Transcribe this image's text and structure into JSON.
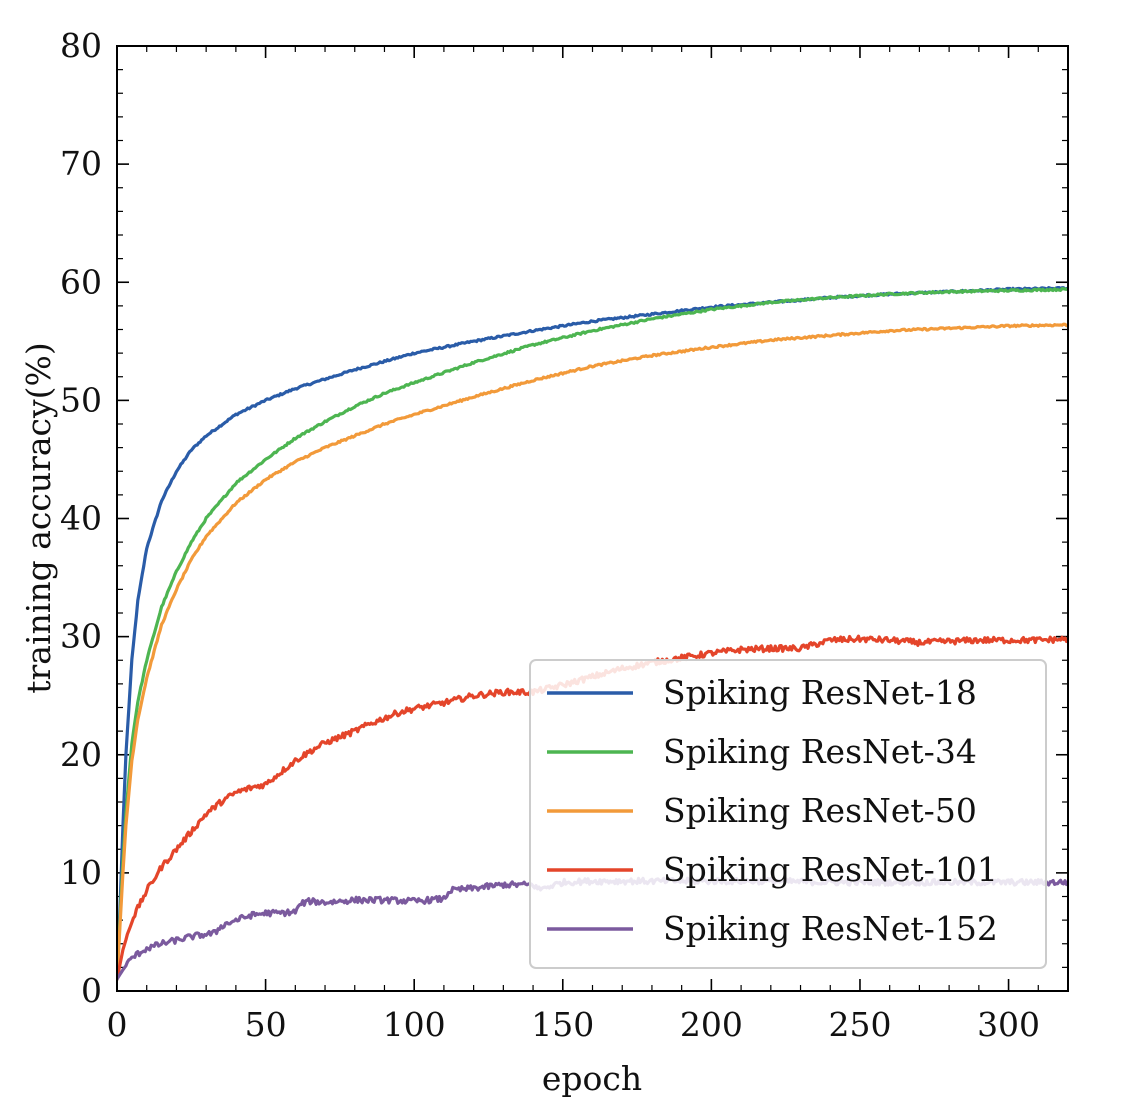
{
  "chart_data": {
    "type": "line",
    "title": "",
    "xlabel": "epoch",
    "ylabel": "training accuracy(%)",
    "xlim": [
      0,
      320
    ],
    "ylim": [
      0,
      80
    ],
    "xticks": [
      0,
      50,
      100,
      150,
      200,
      250,
      300
    ],
    "yticks": [
      0,
      10,
      20,
      30,
      40,
      50,
      60,
      70,
      80
    ],
    "grid": false,
    "legend": {
      "position": "lower-right"
    },
    "series": [
      {
        "name": "Spiking ResNet-18",
        "color": "#2a5ca8",
        "x": [
          0,
          1,
          2,
          3,
          5,
          7,
          10,
          15,
          20,
          25,
          30,
          40,
          50,
          60,
          70,
          80,
          90,
          100,
          120,
          140,
          160,
          180,
          200,
          220,
          240,
          260,
          280,
          300,
          320
        ],
        "y": [
          1.0,
          7.0,
          14.0,
          20.0,
          28.0,
          33.0,
          37.5,
          41.5,
          44.0,
          45.8,
          47.0,
          48.8,
          50.0,
          51.0,
          51.8,
          52.6,
          53.3,
          54.0,
          55.0,
          55.9,
          56.7,
          57.3,
          57.9,
          58.3,
          58.7,
          59.0,
          59.2,
          59.4,
          59.5
        ]
      },
      {
        "name": "Spiking ResNet-34",
        "color": "#4db551",
        "x": [
          0,
          1,
          2,
          3,
          5,
          7,
          10,
          15,
          20,
          25,
          30,
          40,
          50,
          60,
          70,
          80,
          90,
          100,
          120,
          140,
          160,
          180,
          200,
          220,
          240,
          260,
          280,
          300,
          320
        ],
        "y": [
          1.0,
          6.0,
          11.0,
          15.0,
          21.0,
          24.5,
          28.0,
          32.5,
          35.5,
          38.0,
          40.0,
          43.0,
          45.0,
          46.8,
          48.2,
          49.5,
          50.6,
          51.5,
          53.2,
          54.7,
          55.9,
          56.9,
          57.7,
          58.3,
          58.7,
          59.0,
          59.2,
          59.3,
          59.4
        ]
      },
      {
        "name": "Spiking ResNet-50",
        "color": "#f29a3a",
        "x": [
          0,
          1,
          2,
          3,
          5,
          7,
          10,
          15,
          20,
          25,
          30,
          40,
          50,
          60,
          70,
          80,
          90,
          100,
          120,
          140,
          160,
          180,
          200,
          220,
          240,
          260,
          280,
          300,
          320
        ],
        "y": [
          1.0,
          5.5,
          10.0,
          14.0,
          19.5,
          23.0,
          26.5,
          31.0,
          34.0,
          36.5,
          38.5,
          41.3,
          43.3,
          44.8,
          46.0,
          47.0,
          48.0,
          48.8,
          50.3,
          51.7,
          52.9,
          53.8,
          54.5,
          55.1,
          55.5,
          55.9,
          56.1,
          56.3,
          56.4
        ]
      },
      {
        "name": "Spiking ResNet-101",
        "color": "#e4452a",
        "x": [
          0,
          2,
          5,
          8,
          10,
          15,
          20,
          25,
          30,
          35,
          40,
          45,
          50,
          55,
          60,
          65,
          70,
          75,
          80,
          85,
          90,
          95,
          100,
          110,
          120,
          130,
          140,
          150,
          160,
          170,
          180,
          190,
          200,
          210,
          220,
          230,
          240,
          250,
          260,
          270,
          280,
          290,
          300,
          310,
          320
        ],
        "y": [
          1.0,
          3.5,
          6.0,
          7.5,
          8.5,
          10.5,
          12.0,
          13.5,
          15.0,
          16.0,
          16.8,
          17.2,
          17.5,
          18.5,
          19.5,
          20.3,
          21.0,
          21.5,
          22.0,
          22.6,
          23.1,
          23.6,
          23.9,
          24.4,
          25.0,
          25.3,
          25.3,
          25.9,
          26.6,
          27.3,
          27.8,
          28.2,
          28.6,
          28.9,
          29.0,
          29.0,
          29.7,
          29.8,
          29.7,
          29.5,
          29.6,
          29.7,
          29.7,
          29.7,
          29.8
        ]
      },
      {
        "name": "Spiking ResNet-152",
        "color": "#7b5a9e",
        "x": [
          0,
          2,
          5,
          8,
          10,
          15,
          20,
          25,
          30,
          33,
          35,
          40,
          45,
          50,
          55,
          60,
          62,
          65,
          70,
          80,
          90,
          100,
          110,
          112,
          120,
          130,
          140,
          142,
          150,
          160,
          170,
          180,
          200,
          220,
          240,
          260,
          280,
          300,
          320
        ],
        "y": [
          1.0,
          1.8,
          2.8,
          3.3,
          3.6,
          4.0,
          4.3,
          4.6,
          4.8,
          4.9,
          5.5,
          6.0,
          6.4,
          6.6,
          6.6,
          6.7,
          7.4,
          7.6,
          7.5,
          7.7,
          7.7,
          7.6,
          7.8,
          8.5,
          8.7,
          9.0,
          9.0,
          8.6,
          9.2,
          9.3,
          9.3,
          9.3,
          9.3,
          9.3,
          9.2,
          9.2,
          9.2,
          9.2,
          9.2
        ]
      }
    ]
  }
}
